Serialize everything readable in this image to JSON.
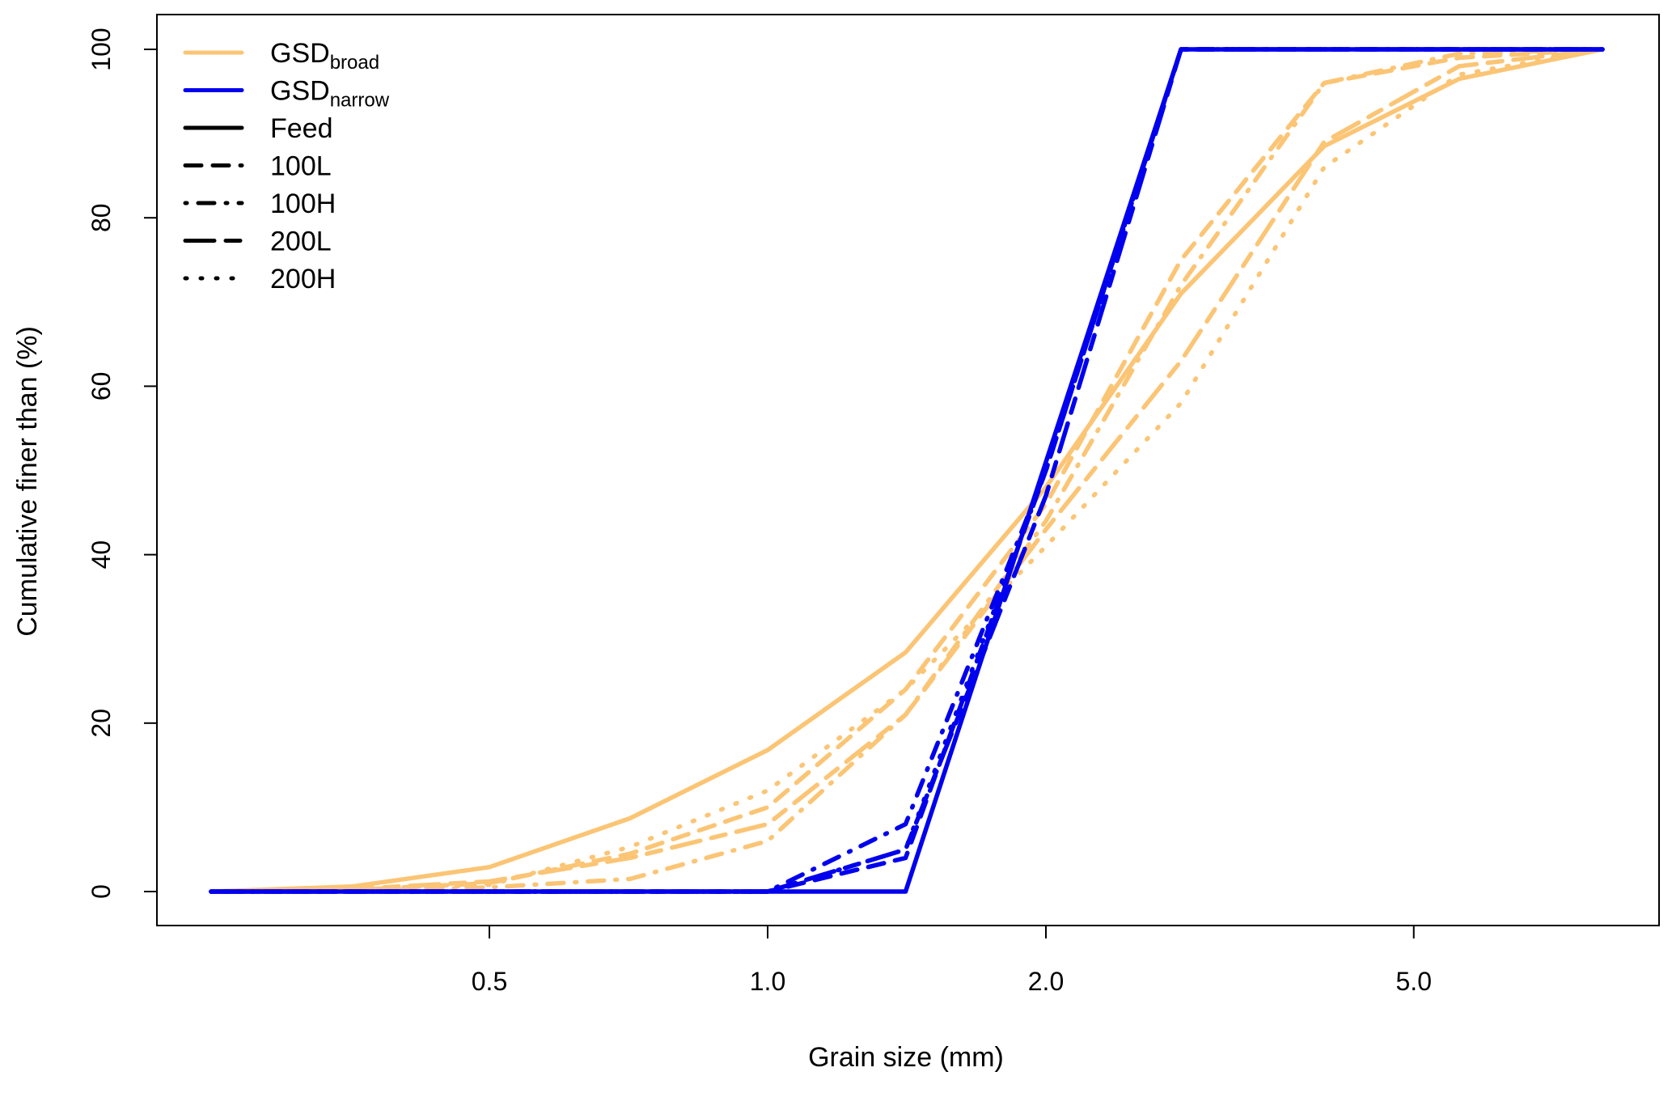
{
  "chart_data": {
    "type": "line",
    "title": "",
    "xlabel": "Grain size (mm)",
    "ylabel": "Cumulative finer than (%)",
    "xscale": "log",
    "xticks": [
      0.5,
      1.0,
      2.0,
      5.0
    ],
    "xtick_labels": [
      "0.5",
      "1.0",
      "2.0",
      "5.0"
    ],
    "yticks": [
      0,
      20,
      40,
      60,
      80,
      100
    ],
    "ytick_labels": [
      "0",
      "20",
      "40",
      "60",
      "80",
      "100"
    ],
    "xlim": [
      0.22,
      9.2
    ],
    "ylim": [
      -4,
      104
    ],
    "grid": false,
    "legend_position": "top-left",
    "legend": {
      "colors": [
        {
          "base": "GSD",
          "sub": "broad",
          "color": "#FBC575"
        },
        {
          "base": "GSD",
          "sub": "narrow",
          "color": "#0000EE"
        }
      ],
      "styles": [
        {
          "label": "Feed",
          "dash": "solid"
        },
        {
          "label": "100L",
          "dash": "dashed"
        },
        {
          "label": "100H",
          "dash": "dotdash"
        },
        {
          "label": "200L",
          "dash": "longdash"
        },
        {
          "label": "200H",
          "dash": "dotted"
        }
      ]
    },
    "x": [
      0.25,
      0.355,
      0.5,
      0.71,
      1.0,
      1.41,
      2.0,
      2.8,
      4.0,
      5.6,
      8.0
    ],
    "series": [
      {
        "name": "GSDbroad Feed",
        "group": "broad",
        "dash": "solid",
        "values": [
          0,
          0.6,
          2.9,
          8.7,
          16.8,
          28.4,
          48,
          71,
          88.5,
          96.5,
          100
        ]
      },
      {
        "name": "GSDbroad 100L",
        "group": "broad",
        "dash": "dashed",
        "values": [
          0,
          0.2,
          1.0,
          4.5,
          10,
          24,
          46,
          75,
          96,
          99,
          100
        ]
      },
      {
        "name": "GSDbroad 100H",
        "group": "broad",
        "dash": "dotdash",
        "values": [
          0,
          0,
          0.5,
          1.5,
          6,
          21,
          44,
          72,
          96,
          99.5,
          100
        ]
      },
      {
        "name": "GSDbroad 200L",
        "group": "broad",
        "dash": "longdash",
        "values": [
          0,
          0.3,
          1.2,
          4,
          8,
          21,
          43,
          63,
          89,
          98,
          100
        ]
      },
      {
        "name": "GSDbroad 200H",
        "group": "broad",
        "dash": "dotted",
        "values": [
          0,
          0.2,
          0.8,
          5.3,
          12,
          24,
          41,
          58,
          86,
          97,
          100
        ]
      },
      {
        "name": "GSDnarrow Feed",
        "group": "narrow",
        "dash": "solid",
        "values": [
          0,
          0,
          0,
          0,
          0,
          0,
          51,
          100,
          100,
          100,
          100
        ]
      },
      {
        "name": "GSDnarrow 100L",
        "group": "narrow",
        "dash": "dashed",
        "values": [
          0,
          0,
          0,
          0,
          0,
          4,
          50,
          100,
          100,
          100,
          100
        ]
      },
      {
        "name": "GSDnarrow 100H",
        "group": "narrow",
        "dash": "dotdash",
        "values": [
          0,
          0,
          0,
          0,
          0,
          8,
          50,
          100,
          100,
          100,
          100
        ]
      },
      {
        "name": "GSDnarrow 200L",
        "group": "narrow",
        "dash": "longdash",
        "values": [
          0,
          0,
          0,
          0,
          0,
          5,
          47,
          100,
          100,
          100,
          100
        ]
      },
      {
        "name": "GSDnarrow 200H",
        "group": "narrow",
        "dash": "dotted",
        "values": [
          0,
          0,
          0,
          0,
          0,
          5,
          50,
          100,
          100,
          100,
          100
        ]
      }
    ]
  }
}
